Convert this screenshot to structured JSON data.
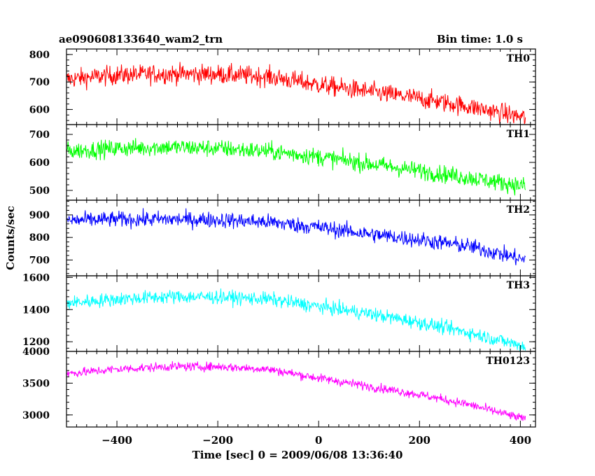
{
  "header": {
    "title": "ae090608133640_wam2_trn",
    "bin_time": "Bin time: 1.0 s"
  },
  "axes": {
    "xlabel": "Time [sec] 0 = 2009/06/08 13:36:40",
    "ylabel": "Counts/sec"
  },
  "chart_data": {
    "type": "line",
    "title": "ae090608133640_wam2_trn",
    "xlabel": "Time [sec] 0 = 2009/06/08 13:36:40",
    "ylabel": "Counts/sec",
    "xlim": [
      -500,
      430
    ],
    "x_ticks": [
      -400,
      -200,
      0,
      200,
      400
    ],
    "x_tick_labels": [
      "−400",
      "−200",
      "0",
      "200",
      "400"
    ],
    "bin_time_s": 1.0,
    "sample_x": [
      -500,
      -400,
      -300,
      -200,
      -100,
      0,
      100,
      200,
      300,
      410
    ],
    "panels": [
      {
        "name": "TH0",
        "color": "#ff0000",
        "ylim": [
          545,
          820
        ],
        "y_ticks": [
          600,
          700,
          800
        ],
        "y_tick_labels": [
          "600",
          "700",
          "800"
        ],
        "mean_y": [
          710,
          725,
          730,
          728,
          720,
          690,
          665,
          640,
          610,
          570
        ],
        "noise": 45
      },
      {
        "name": "TH1",
        "color": "#00ff00",
        "ylim": [
          465,
          735
        ],
        "y_ticks": [
          500,
          600,
          700
        ],
        "y_tick_labels": [
          "500",
          "600",
          "700"
        ],
        "mean_y": [
          640,
          650,
          655,
          650,
          640,
          620,
          595,
          570,
          545,
          515
        ],
        "noise": 40
      },
      {
        "name": "TH2",
        "color": "#0000ff",
        "ylim": [
          630,
          965
        ],
        "y_ticks": [
          700,
          800,
          900
        ],
        "y_tick_labels": [
          "700",
          "800",
          "900"
        ],
        "mean_y": [
          875,
          880,
          880,
          878,
          868,
          845,
          815,
          790,
          760,
          700
        ],
        "noise": 45
      },
      {
        "name": "TH3",
        "color": "#00ffff",
        "ylim": [
          1140,
          1610
        ],
        "y_ticks": [
          1200,
          1400,
          1600
        ],
        "y_tick_labels": [
          "1200",
          "1400",
          "1600"
        ],
        "mean_y": [
          1440,
          1465,
          1480,
          1478,
          1465,
          1420,
          1375,
          1320,
          1255,
          1170
        ],
        "noise": 55
      },
      {
        "name": "TH0123",
        "color": "#ff00ff",
        "ylim": [
          2810,
          4000
        ],
        "y_ticks": [
          3000,
          3500,
          4000
        ],
        "y_tick_labels": [
          "3000",
          "3500",
          "4000"
        ],
        "mean_y": [
          3650,
          3720,
          3760,
          3760,
          3720,
          3580,
          3450,
          3320,
          3160,
          2930
        ],
        "noise": 90
      }
    ]
  }
}
